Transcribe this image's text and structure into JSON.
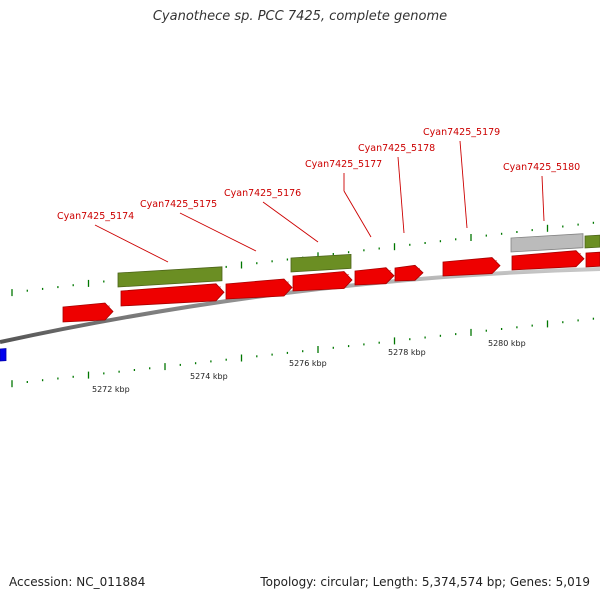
{
  "title": "Cyanothece sp. PCC 7425, complete genome",
  "footer": {
    "accession": "Accession: NC_011884",
    "summary": "Topology: circular; Length: 5,374,574 bp; Genes: 5,019"
  },
  "colors": {
    "forward_gene": "#ee0000",
    "green_feature": "#6b8e23",
    "grey_feature": "#bbbbbb",
    "blue_feature": "#0000ee",
    "backbone": "#888888",
    "tick": "#007700",
    "label": "#cc0000"
  },
  "gene_labels": [
    "Cyan7425_5174",
    "Cyan7425_5175",
    "Cyan7425_5176",
    "Cyan7425_5177",
    "Cyan7425_5178",
    "Cyan7425_5179",
    "Cyan7425_5180"
  ],
  "kbp_labels": [
    "5272 kbp",
    "5274 kbp",
    "5276 kbp",
    "5278 kbp",
    "5280 kbp"
  ]
}
